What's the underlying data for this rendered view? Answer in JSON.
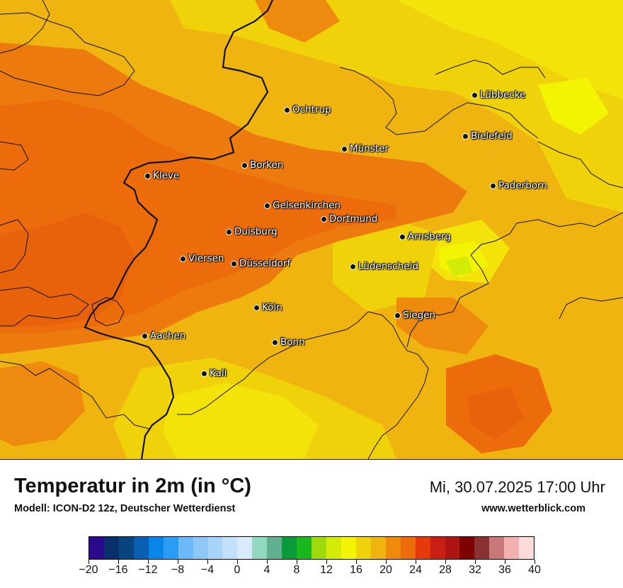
{
  "map": {
    "cities": [
      {
        "name": "Ochtrup"
      },
      {
        "name": "Lübbecke"
      },
      {
        "name": "Bielefeld"
      },
      {
        "name": "Münster"
      },
      {
        "name": "Borken"
      },
      {
        "name": "Kleve"
      },
      {
        "name": "Paderborn"
      },
      {
        "name": "Gelsenkirchen"
      },
      {
        "name": "Dortmund"
      },
      {
        "name": "Duisburg"
      },
      {
        "name": "Arnsberg"
      },
      {
        "name": "Viersen"
      },
      {
        "name": "Düsseldorf"
      },
      {
        "name": "Lüdenscheid"
      },
      {
        "name": "Köln"
      },
      {
        "name": "Siegen"
      },
      {
        "name": "Aachen"
      },
      {
        "name": "Bonn"
      },
      {
        "name": "Kall"
      }
    ]
  },
  "footer": {
    "title": "Temperatur in 2m (in °C)",
    "model": "Modell: ICON-D2 12z, Deutscher Wetterdienst",
    "datetime": "Mi, 30.07.2025 17:00 Uhr",
    "website": "www.wetterblick.com"
  },
  "legend": {
    "colors": [
      "#2c0a8c",
      "#08306b",
      "#08457e",
      "#0a5fb0",
      "#0a86e8",
      "#2a9df4",
      "#6db8f7",
      "#8ec8f8",
      "#a9d4fa",
      "#c3e0fb",
      "#d8eafc",
      "#93d9c0",
      "#62b090",
      "#0a9a3c",
      "#1ab81e",
      "#9ed90c",
      "#d4eb08",
      "#f3f304",
      "#f0d20a",
      "#f0b410",
      "#ee8a0e",
      "#ec6c0c",
      "#e63a0c",
      "#c81e14",
      "#ad1414",
      "#7e0000",
      "#8a3232",
      "#c87878",
      "#f2b0b0",
      "#fbdada"
    ],
    "tick_labels": [
      "−20",
      "−16",
      "−12",
      "−8",
      "−4",
      "0",
      "4",
      "8",
      "12",
      "16",
      "20",
      "24",
      "28",
      "32",
      "36",
      "40"
    ]
  }
}
